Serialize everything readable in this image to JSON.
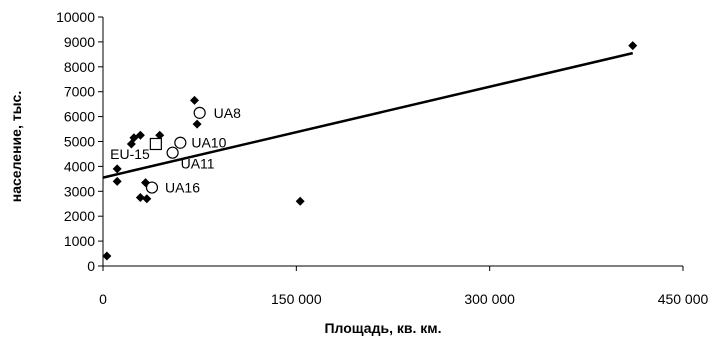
{
  "chart_data": {
    "type": "scatter",
    "title": "",
    "xlabel": "Площадь, кв. км.",
    "ylabel": "население, тыс.",
    "xlim": [
      0,
      450000
    ],
    "ylim": [
      0,
      10000
    ],
    "x_ticks": [
      0,
      150000,
      300000,
      450000
    ],
    "x_tick_labels": [
      "0",
      "150 000",
      "300 000",
      "450 000"
    ],
    "y_ticks": [
      0,
      1000,
      2000,
      3000,
      4000,
      5000,
      6000,
      7000,
      8000,
      9000,
      10000
    ],
    "y_tick_labels": [
      "0",
      "1000",
      "2000",
      "3000",
      "4000",
      "5000",
      "6000",
      "7000",
      "8000",
      "9000",
      "10000"
    ],
    "grid": false,
    "legend": "none",
    "series": [
      {
        "marker": "diamond",
        "color": "#000000",
        "points": [
          {
            "x": 3000,
            "y": 400
          },
          {
            "x": 11000,
            "y": 3900
          },
          {
            "x": 11000,
            "y": 3400
          },
          {
            "x": 22000,
            "y": 4900
          },
          {
            "x": 24000,
            "y": 5150
          },
          {
            "x": 29000,
            "y": 5250
          },
          {
            "x": 29000,
            "y": 2750
          },
          {
            "x": 33000,
            "y": 3350
          },
          {
            "x": 34000,
            "y": 2700
          },
          {
            "x": 44000,
            "y": 5250
          },
          {
            "x": 71000,
            "y": 6650
          },
          {
            "x": 73000,
            "y": 5700
          },
          {
            "x": 153000,
            "y": 2600
          },
          {
            "x": 411000,
            "y": 8850
          }
        ]
      },
      {
        "marker": "circle",
        "color": "#000000",
        "points": [
          {
            "x": 75000,
            "y": 6150,
            "label": "UA8"
          },
          {
            "x": 60000,
            "y": 4950,
            "label": "UA10"
          },
          {
            "x": 54000,
            "y": 4550,
            "label": "UA11"
          },
          {
            "x": 38000,
            "y": 3150,
            "label": "UA16"
          }
        ]
      },
      {
        "marker": "square",
        "color": "#000000",
        "points": [
          {
            "x": 41000,
            "y": 4900,
            "label": "EU-15"
          }
        ]
      }
    ],
    "trendline": {
      "type": "linear",
      "color": "#000000",
      "x": [
        0,
        411000
      ],
      "y": [
        3550,
        8550
      ]
    }
  }
}
